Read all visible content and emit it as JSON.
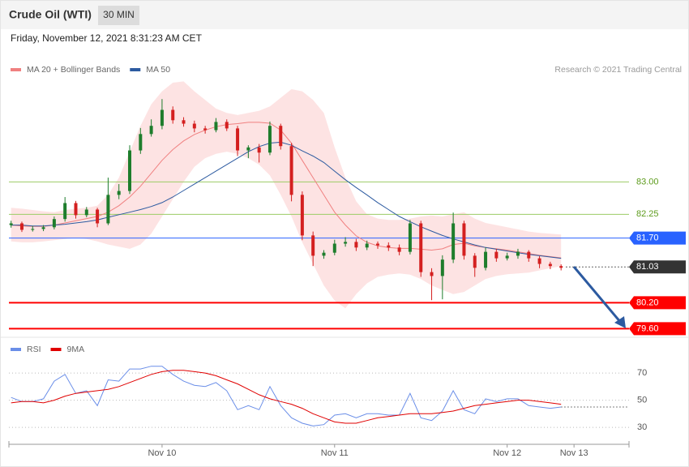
{
  "header": {
    "title": "Crude Oil (WTI)",
    "interval": "30 MIN",
    "timestamp": "Friday, November 12, 2021 8:31:23 AM CET"
  },
  "chart_data": [
    {
      "type": "candlestick",
      "credit": "Research © 2021 Trading Central",
      "xlim": [
        -0.2,
        57.3
      ],
      "ylim": [
        79.4,
        85.45
      ],
      "candles": {
        "up_color": "#1e7d2c",
        "down_color": "#d42020",
        "open": [
          82.0,
          82.04,
          81.89,
          81.91,
          81.95,
          82.14,
          82.51,
          82.23,
          82.36,
          82.04,
          82.7,
          82.79,
          83.73,
          84.11,
          84.3,
          84.67,
          84.43,
          84.35,
          84.24,
          84.2,
          84.39,
          84.24,
          83.73,
          83.8,
          83.68,
          84.3,
          83.83,
          82.7,
          81.76,
          81.29,
          81.36,
          81.57,
          81.61,
          81.48,
          81.57,
          81.53,
          81.48,
          81.38,
          82.04,
          80.91,
          80.82,
          81.2,
          82.04,
          81.29,
          81.01,
          81.38,
          81.23,
          81.29,
          81.38,
          81.23,
          81.1,
          81.05
        ],
        "high": [
          82.1,
          82.08,
          81.98,
          82.0,
          82.2,
          82.65,
          82.56,
          82.42,
          82.4,
          83.1,
          82.95,
          83.85,
          84.25,
          84.45,
          84.92,
          84.75,
          84.5,
          84.42,
          84.3,
          84.48,
          84.45,
          84.3,
          83.85,
          83.88,
          84.4,
          84.35,
          83.9,
          82.78,
          81.85,
          81.42,
          81.66,
          81.72,
          81.68,
          81.64,
          81.62,
          81.6,
          81.55,
          82.12,
          82.1,
          81.0,
          81.3,
          82.29,
          82.1,
          81.35,
          81.48,
          81.45,
          81.36,
          81.45,
          81.42,
          81.28,
          81.15,
          81.09
        ],
        "low": [
          81.94,
          81.84,
          81.85,
          81.86,
          81.9,
          82.08,
          82.15,
          82.18,
          81.95,
          82.0,
          82.6,
          82.72,
          83.65,
          84.05,
          84.22,
          84.35,
          84.28,
          84.15,
          84.12,
          84.15,
          84.18,
          83.6,
          83.55,
          83.45,
          83.62,
          83.75,
          82.55,
          81.65,
          81.05,
          81.22,
          81.3,
          81.5,
          81.4,
          81.42,
          81.45,
          81.4,
          81.3,
          81.32,
          80.8,
          80.26,
          80.28,
          81.12,
          81.2,
          80.8,
          80.95,
          81.15,
          81.18,
          81.22,
          81.15,
          81.0,
          80.98,
          80.95
        ],
        "close": [
          82.04,
          81.89,
          81.91,
          81.95,
          82.14,
          82.51,
          82.23,
          82.36,
          82.04,
          82.7,
          82.79,
          83.73,
          84.11,
          84.3,
          84.67,
          84.43,
          84.35,
          84.24,
          84.2,
          84.39,
          84.24,
          83.73,
          83.8,
          83.68,
          84.3,
          83.83,
          82.7,
          81.76,
          81.29,
          81.36,
          81.57,
          81.61,
          81.48,
          81.57,
          81.53,
          81.48,
          81.38,
          82.04,
          80.91,
          80.82,
          81.2,
          82.04,
          81.29,
          81.01,
          81.38,
          81.23,
          81.29,
          81.38,
          81.23,
          81.1,
          81.05,
          81.01
        ]
      },
      "bands": {
        "name": "MA 20 + Bollinger Bands",
        "color": "#f08080",
        "fill": "#fde3e3",
        "ma": [
          82.0,
          81.98,
          81.97,
          81.97,
          82.0,
          82.05,
          82.1,
          82.15,
          82.2,
          82.3,
          82.45,
          82.65,
          82.9,
          83.2,
          83.5,
          83.75,
          83.95,
          84.1,
          84.2,
          84.28,
          84.33,
          84.35,
          84.38,
          84.38,
          84.36,
          84.2,
          83.9,
          83.5,
          83.1,
          82.7,
          82.3,
          82.0,
          81.75,
          81.6,
          81.52,
          81.48,
          81.46,
          81.46,
          81.44,
          81.42,
          81.45,
          81.55,
          81.58,
          81.52,
          81.48,
          81.45,
          81.42,
          81.38,
          81.34,
          81.3,
          81.27,
          81.24
        ],
        "upper": [
          82.4,
          82.38,
          82.35,
          82.32,
          82.3,
          82.35,
          82.38,
          82.4,
          82.45,
          82.7,
          83.1,
          83.7,
          84.3,
          84.8,
          85.1,
          85.3,
          85.33,
          85.1,
          84.9,
          84.7,
          84.6,
          84.55,
          84.6,
          84.65,
          84.75,
          84.95,
          85.15,
          85.1,
          84.9,
          84.6,
          83.8,
          83.1,
          82.55,
          82.25,
          82.15,
          82.12,
          82.12,
          82.15,
          82.2,
          82.22,
          82.2,
          82.25,
          82.3,
          82.15,
          82.05,
          82.0,
          81.95,
          81.9,
          81.85,
          81.82,
          81.8,
          81.78
        ],
        "lower": [
          81.62,
          81.6,
          81.6,
          81.62,
          81.65,
          81.68,
          81.7,
          81.68,
          81.62,
          81.55,
          81.5,
          81.45,
          81.55,
          81.8,
          82.2,
          82.6,
          83.0,
          83.35,
          83.55,
          83.65,
          83.7,
          83.65,
          83.55,
          83.4,
          83.15,
          82.7,
          82.2,
          81.6,
          81.1,
          80.6,
          80.25,
          80.07,
          80.4,
          80.65,
          80.8,
          80.85,
          80.88,
          80.85,
          80.75,
          80.6,
          80.5,
          80.4,
          80.45,
          80.6,
          80.75,
          80.82,
          80.86,
          80.88,
          80.9,
          80.95,
          81.0,
          81.05
        ]
      },
      "ma50": {
        "name": "MA 50",
        "color": "#2c5aa0",
        "values": [
          82.0,
          82.0,
          81.98,
          81.98,
          82.0,
          82.02,
          82.05,
          82.08,
          82.12,
          82.18,
          82.24,
          82.3,
          82.36,
          82.43,
          82.52,
          82.65,
          82.8,
          82.95,
          83.1,
          83.25,
          83.4,
          83.55,
          83.7,
          83.82,
          83.9,
          83.92,
          83.85,
          83.72,
          83.6,
          83.45,
          83.25,
          83.05,
          82.87,
          82.7,
          82.52,
          82.36,
          82.2,
          82.08,
          81.96,
          81.86,
          81.76,
          81.68,
          81.61,
          81.54,
          81.48,
          81.44,
          81.4,
          81.36,
          81.32,
          81.29,
          81.26,
          81.23
        ]
      },
      "levels": [
        {
          "value": 83,
          "label": "83.00",
          "color": "#9ccc65",
          "style": "solid",
          "box": false
        },
        {
          "value": 82.25,
          "label": "82.25",
          "color": "#9ccc65",
          "style": "solid",
          "box": false
        },
        {
          "value": 81.7,
          "label": "81.70",
          "color": "#2962ff",
          "style": "solid",
          "box": true
        },
        {
          "value": 81.03,
          "label": "81.03",
          "color": "#333333",
          "style": "dotted",
          "box": true
        },
        {
          "value": 80.2,
          "label": "80.20",
          "color": "#ff0000",
          "style": "bold",
          "box": true
        },
        {
          "value": 79.6,
          "label": "79.60",
          "color": "#ff0000",
          "style": "bold",
          "box": true
        }
      ]
    },
    {
      "type": "line",
      "xlim": [
        -0.2,
        57.3
      ],
      "ylim": [
        17.5,
        82
      ],
      "yticks": [
        30,
        50,
        70
      ],
      "grid": true,
      "xticks": [
        {
          "value": 14,
          "label": "Nov 10"
        },
        {
          "value": 30,
          "label": "Nov 11"
        },
        {
          "value": 46,
          "label": "Nov 12"
        },
        {
          "value": 52.2,
          "label": "Nov 13"
        }
      ],
      "series": [
        {
          "name": "RSI",
          "color": "#6a8ee8",
          "values": [
            52,
            49,
            49,
            51,
            64,
            69,
            55,
            57,
            46,
            65,
            64,
            73,
            73,
            75,
            75,
            69,
            64,
            61,
            60,
            63,
            57,
            43,
            46,
            43,
            60,
            46,
            37,
            33,
            31,
            32,
            39,
            40,
            37,
            40,
            40,
            39,
            39,
            55,
            37,
            35,
            42,
            57,
            43,
            40,
            51,
            49,
            51,
            51,
            46,
            45,
            44,
            45
          ]
        },
        {
          "name": "9MA",
          "color": "#e00000",
          "values": [
            48,
            49,
            49,
            48,
            50,
            53,
            55,
            56,
            57,
            58,
            60,
            63,
            66,
            69,
            71,
            72,
            72,
            71,
            70,
            68,
            65,
            62,
            58,
            54,
            51,
            49,
            47,
            44,
            40,
            37,
            34,
            33,
            33,
            35,
            37,
            38,
            39,
            40,
            40,
            40,
            41,
            42,
            44,
            46,
            47,
            48,
            49,
            50,
            50,
            49,
            48,
            47
          ]
        }
      ]
    }
  ]
}
